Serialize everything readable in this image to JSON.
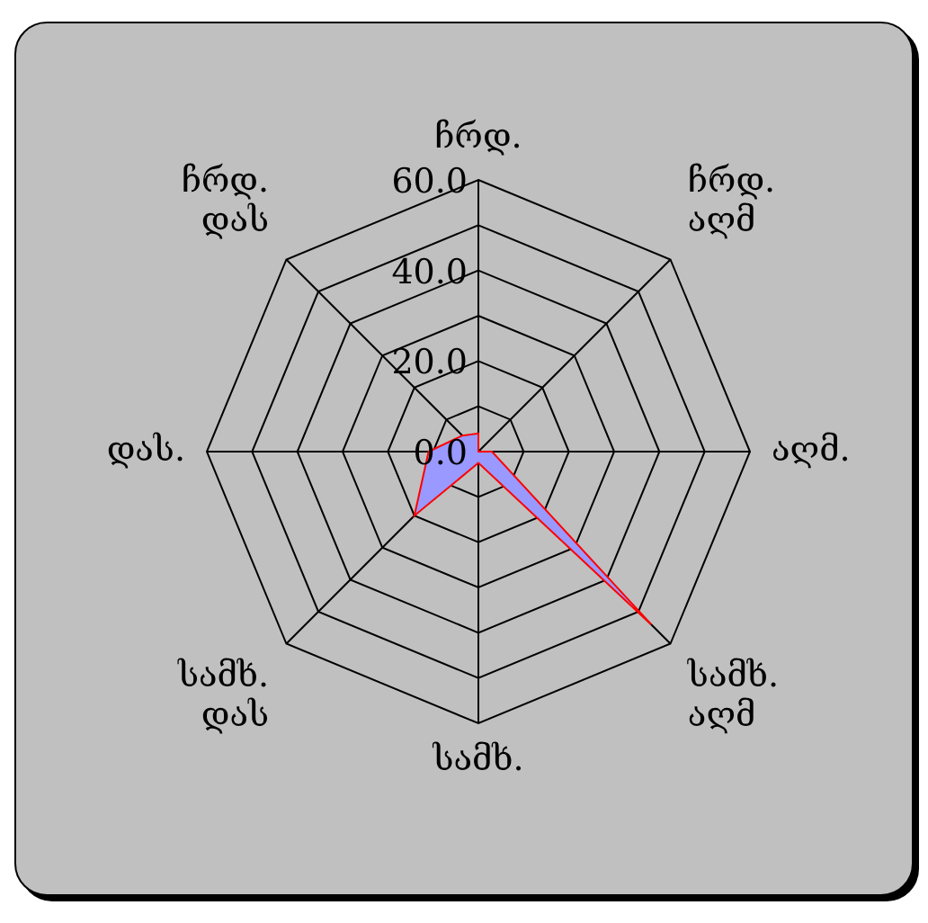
{
  "chart_data": {
    "type": "radar",
    "categories": [
      "ჩრდ.",
      "ჩრდ.აღმ",
      "აღმ.",
      "სამხ.აღმ",
      "სამხ.",
      "სამხ.დას",
      "დას.",
      "ჩრდ.დას"
    ],
    "series": [
      {
        "color": "#9999ff",
        "values": [
          4,
          0,
          3,
          54,
          2.5,
          20,
          11,
          5
        ]
      }
    ],
    "ylim": [
      0,
      60
    ],
    "yticks": [
      {
        "value": 0,
        "label": "0.0"
      },
      {
        "value": 20,
        "label": "20.0"
      },
      {
        "value": 40,
        "label": "40.0"
      },
      {
        "value": 60,
        "label": "60.0"
      }
    ],
    "grid": true,
    "legend": false
  }
}
